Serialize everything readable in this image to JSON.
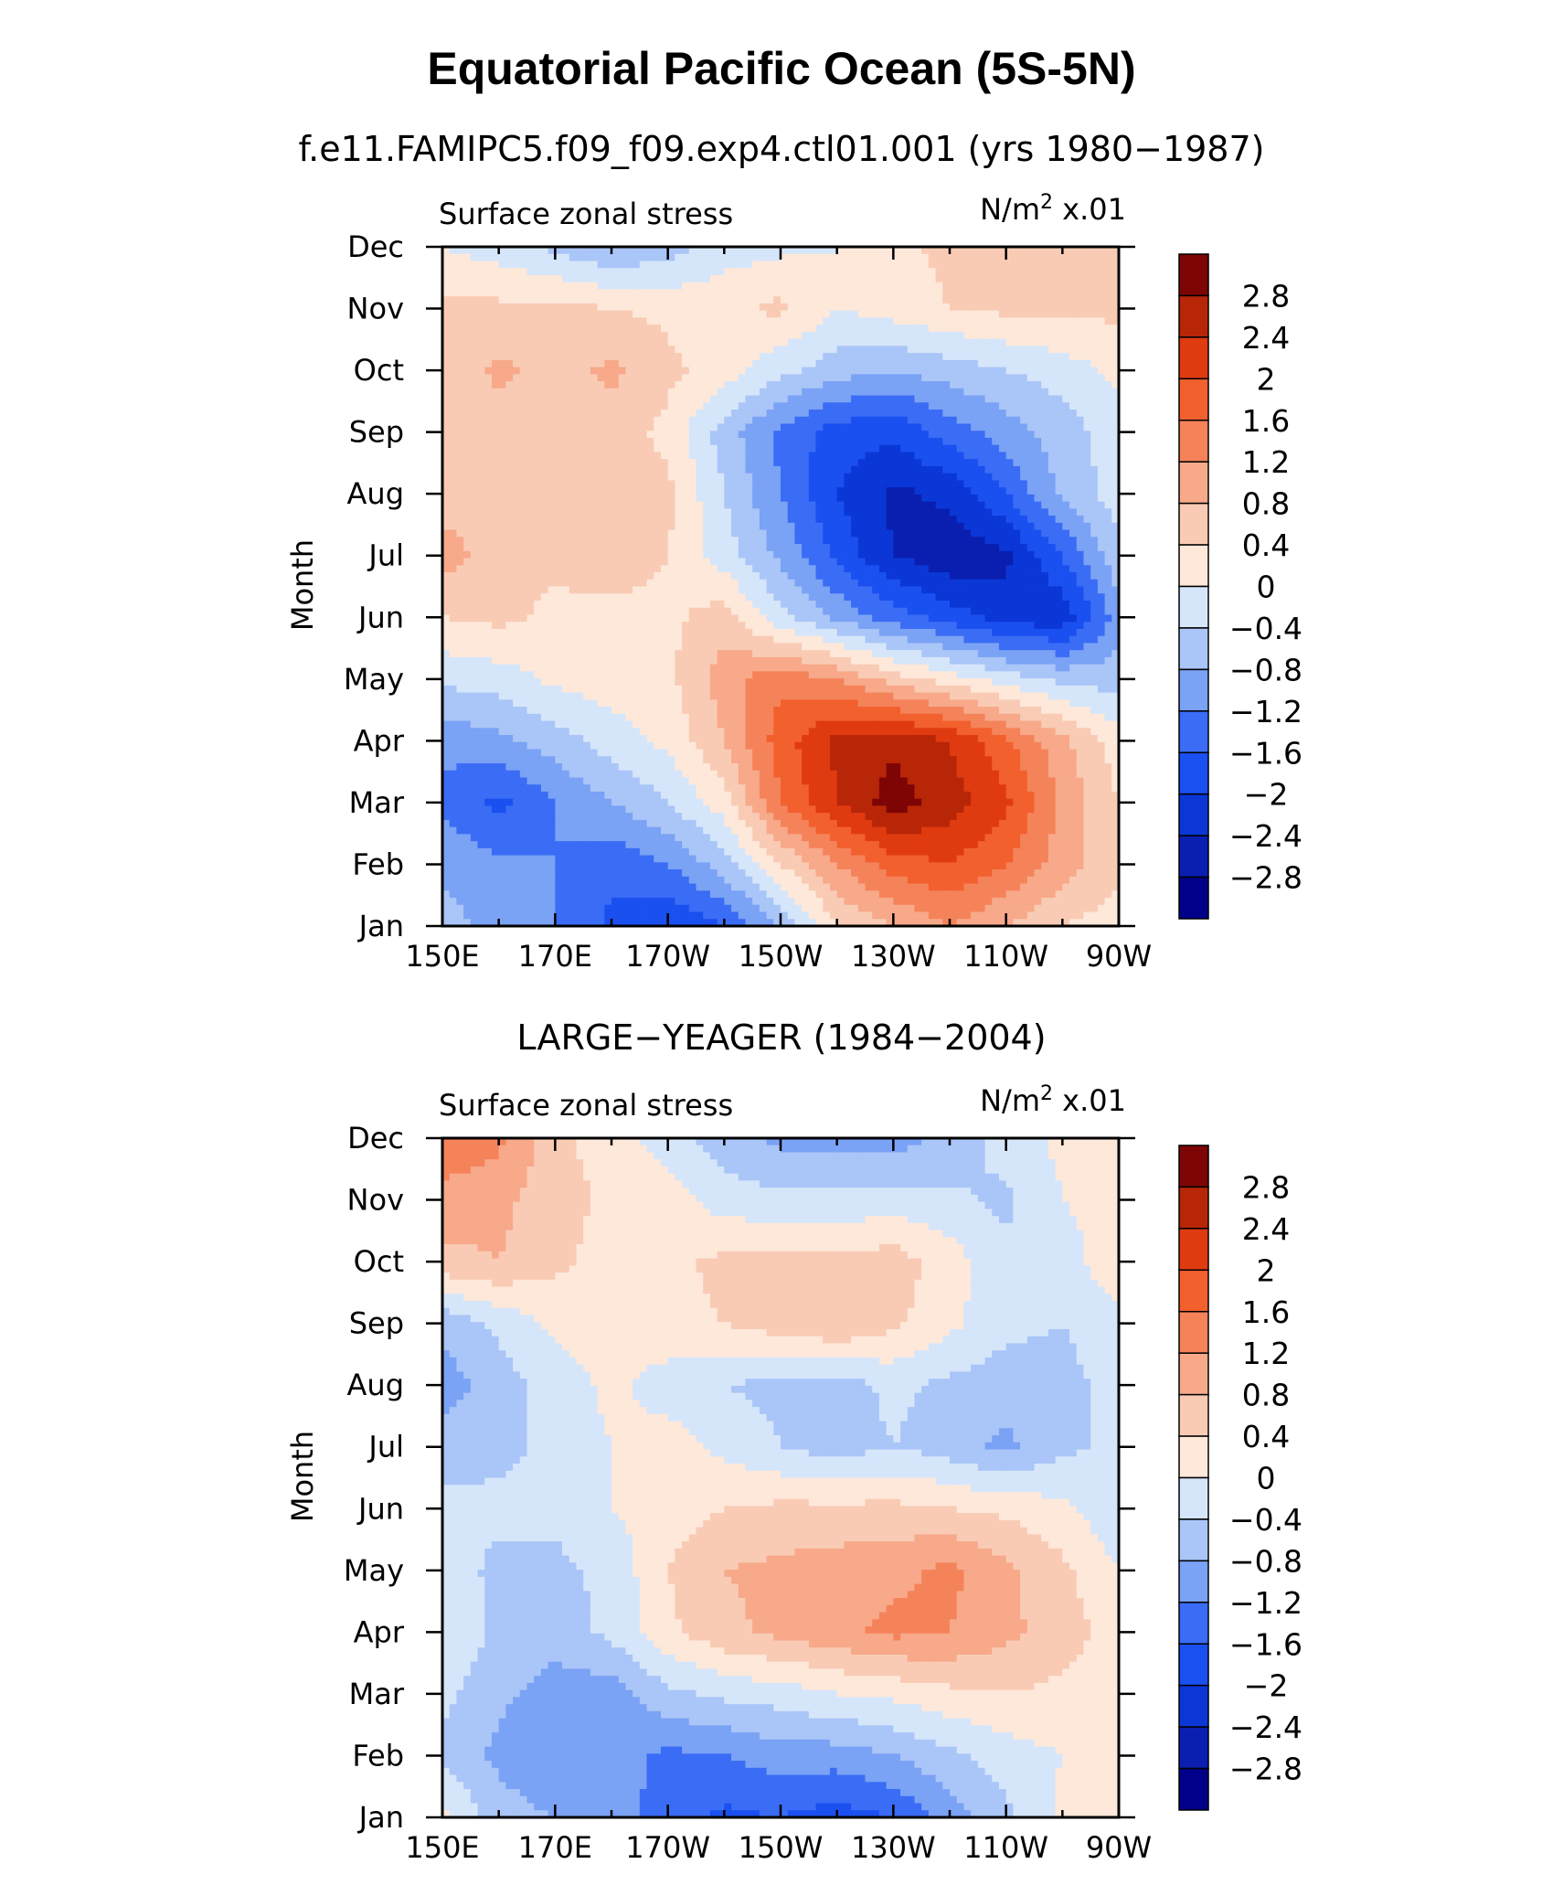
{
  "figure": {
    "title": "Equatorial Pacific Ocean (5S-5N)"
  },
  "colors": {
    "levels": [
      -3.2,
      -2.8,
      -2.4,
      -2.0,
      -1.6,
      -1.2,
      -0.8,
      -0.4,
      0.0,
      0.4,
      0.8,
      1.2,
      1.6,
      2.0,
      2.4,
      2.8,
      3.2
    ],
    "fill": [
      "#00008a",
      "#0a1fb0",
      "#0b37d6",
      "#1a4ff0",
      "#3a6cf5",
      "#7aa2f5",
      "#aac5f7",
      "#d6e6fa",
      "#fde8da",
      "#f9cbb4",
      "#f7a98a",
      "#f5835a",
      "#f2602e",
      "#e03b10",
      "#b82608",
      "#7e0505"
    ]
  },
  "chart_data": [
    {
      "type": "heatmap",
      "panel_title": "f.e11.FAMIPC5.f09_f09.exp4.ctl01.001 (yrs 1980−1987)",
      "left_label": "Surface zonal stress",
      "right_label_main": "N/m",
      "right_label_sup": "2",
      "right_label_tail": " x.01",
      "ylabel": "Month",
      "x_ticks": [
        "150E",
        "170E",
        "170W",
        "150W",
        "130W",
        "110W",
        "90W"
      ],
      "x_tick_lon": [
        150,
        170,
        190,
        210,
        230,
        250,
        270
      ],
      "x_range": [
        150,
        270
      ],
      "y_ticks": [
        "Jan",
        "Feb",
        "Mar",
        "Apr",
        "May",
        "Jun",
        "Jul",
        "Aug",
        "Sep",
        "Oct",
        "Nov",
        "Dec"
      ],
      "colorbar_labels": [
        "2.8",
        "2.4",
        "2",
        "1.6",
        "1.2",
        "0.8",
        "0.4",
        "0",
        "−0.4",
        "−0.8",
        "−1.2",
        "−1.6",
        "−2",
        "−2.4",
        "−2.8"
      ],
      "grid_lon": [
        150,
        160,
        170,
        180,
        190,
        200,
        210,
        220,
        230,
        240,
        250,
        260,
        270
      ],
      "grid": [
        [
          -0.6,
          -1.0,
          -1.2,
          -1.7,
          -2.0,
          -1.6,
          -0.8,
          0.4,
          0.8,
          1.2,
          0.8,
          0.4,
          0.2
        ],
        [
          -0.9,
          -1.1,
          -1.2,
          -1.5,
          -1.2,
          -0.6,
          0.4,
          1.2,
          1.8,
          2.0,
          1.6,
          1.0,
          0.5
        ],
        [
          -1.3,
          -1.7,
          -1.2,
          -0.8,
          -0.4,
          0.2,
          1.6,
          2.4,
          3.0,
          2.6,
          2.1,
          1.1,
          0.4
        ],
        [
          -1.1,
          -0.9,
          -0.6,
          -0.2,
          0.1,
          0.8,
          1.8,
          2.5,
          2.7,
          2.4,
          1.7,
          0.9,
          0.2
        ],
        [
          -0.3,
          -0.2,
          0.1,
          0.2,
          0.3,
          1.0,
          1.5,
          1.2,
          0.6,
          0.2,
          -0.2,
          -0.5,
          -0.6
        ],
        [
          0.4,
          0.5,
          0.3,
          0.3,
          0.3,
          0.6,
          -0.3,
          -0.9,
          -1.4,
          -1.8,
          -2.2,
          -2.3,
          -1.0
        ],
        [
          1.0,
          0.6,
          0.5,
          0.6,
          0.4,
          -0.2,
          -0.9,
          -1.7,
          -2.4,
          -2.7,
          -2.5,
          -1.6,
          -0.5
        ],
        [
          0.6,
          0.6,
          0.5,
          0.6,
          0.5,
          -0.4,
          -1.2,
          -2.0,
          -2.5,
          -2.3,
          -1.6,
          -0.7,
          -0.2
        ],
        [
          0.6,
          0.6,
          0.7,
          0.6,
          0.3,
          -0.6,
          -1.3,
          -1.8,
          -1.9,
          -1.4,
          -1.0,
          -0.6,
          -0.2
        ],
        [
          0.5,
          0.9,
          0.6,
          0.9,
          0.5,
          0.2,
          -0.3,
          -0.6,
          -0.8,
          -0.6,
          -0.4,
          -0.2,
          0.1
        ],
        [
          0.5,
          0.5,
          0.5,
          0.4,
          0.3,
          0.3,
          0.5,
          0.0,
          0.2,
          0.4,
          0.5,
          0.5,
          0.5
        ],
        [
          0.0,
          -0.2,
          -0.5,
          -0.8,
          -0.6,
          -0.2,
          -0.1,
          0.0,
          0.3,
          0.5,
          0.5,
          0.5,
          0.5
        ]
      ]
    },
    {
      "type": "heatmap",
      "panel_title": "LARGE−YEAGER (1984−2004)",
      "left_label": "Surface zonal stress",
      "right_label_main": "N/m",
      "right_label_sup": "2",
      "right_label_tail": " x.01",
      "ylabel": "Month",
      "x_ticks": [
        "150E",
        "170E",
        "170W",
        "150W",
        "130W",
        "110W",
        "90W"
      ],
      "x_tick_lon": [
        150,
        170,
        190,
        210,
        230,
        250,
        270
      ],
      "x_range": [
        150,
        270
      ],
      "y_ticks": [
        "Jan",
        "Feb",
        "Mar",
        "Apr",
        "May",
        "Jun",
        "Jul",
        "Aug",
        "Sep",
        "Oct",
        "Nov",
        "Dec"
      ],
      "colorbar_labels": [
        "2.8",
        "2.4",
        "2",
        "1.6",
        "1.2",
        "0.8",
        "0.4",
        "0",
        "−0.4",
        "−0.8",
        "−1.2",
        "−1.6",
        "−2",
        "−2.4",
        "−2.8"
      ],
      "grid_lon": [
        150,
        160,
        170,
        180,
        190,
        200,
        210,
        220,
        230,
        240,
        250,
        260,
        270
      ],
      "grid": [
        [
          0.1,
          -0.6,
          -0.8,
          -1.0,
          -1.4,
          -1.7,
          -1.6,
          -1.8,
          -1.6,
          -1.0,
          -0.5,
          0.1,
          0.1
        ],
        [
          -0.5,
          -0.9,
          -1.2,
          -1.0,
          -1.3,
          -1.2,
          -1.0,
          -1.0,
          -0.8,
          -0.5,
          -0.2,
          0.0,
          0.1
        ],
        [
          -0.3,
          -0.7,
          -1.0,
          -1.0,
          -0.5,
          -0.3,
          -0.2,
          0.0,
          0.1,
          0.3,
          0.4,
          0.3,
          0.1
        ],
        [
          0.0,
          -0.5,
          -0.6,
          -0.3,
          0.3,
          0.7,
          0.9,
          1.1,
          1.3,
          1.2,
          0.9,
          0.6,
          0.2
        ],
        [
          -0.2,
          -0.5,
          -0.5,
          -0.3,
          0.4,
          0.8,
          0.9,
          1.0,
          1.1,
          1.3,
          0.9,
          0.5,
          0.0
        ],
        [
          -0.3,
          -0.3,
          -0.3,
          0.0,
          0.2,
          0.4,
          0.5,
          0.5,
          0.5,
          0.4,
          0.3,
          0.1,
          -0.3
        ],
        [
          -0.6,
          -0.5,
          -0.3,
          0.0,
          0.2,
          -0.1,
          -0.4,
          -0.6,
          -0.4,
          -0.6,
          -0.9,
          -0.5,
          -0.3
        ],
        [
          -1.0,
          -0.6,
          -0.2,
          0.1,
          -0.2,
          -0.4,
          -0.5,
          -0.6,
          -0.3,
          -0.5,
          -0.6,
          -0.5,
          -0.3
        ],
        [
          -0.7,
          -0.3,
          0.1,
          0.2,
          0.3,
          0.4,
          0.6,
          0.8,
          0.5,
          0.1,
          -0.3,
          -0.4,
          -0.2
        ],
        [
          0.7,
          0.8,
          0.5,
          0.2,
          0.3,
          0.5,
          0.5,
          0.5,
          0.6,
          0.2,
          -0.3,
          -0.3,
          0.4
        ],
        [
          1.0,
          0.9,
          0.6,
          0.3,
          0.2,
          -0.2,
          -0.3,
          -0.3,
          -0.2,
          -0.3,
          -0.5,
          0.0,
          0.3
        ],
        [
          1.6,
          1.3,
          0.5,
          0.2,
          -0.2,
          -0.6,
          -0.9,
          -1.0,
          -1.0,
          -0.7,
          -0.2,
          0.1,
          0.3
        ]
      ]
    }
  ]
}
